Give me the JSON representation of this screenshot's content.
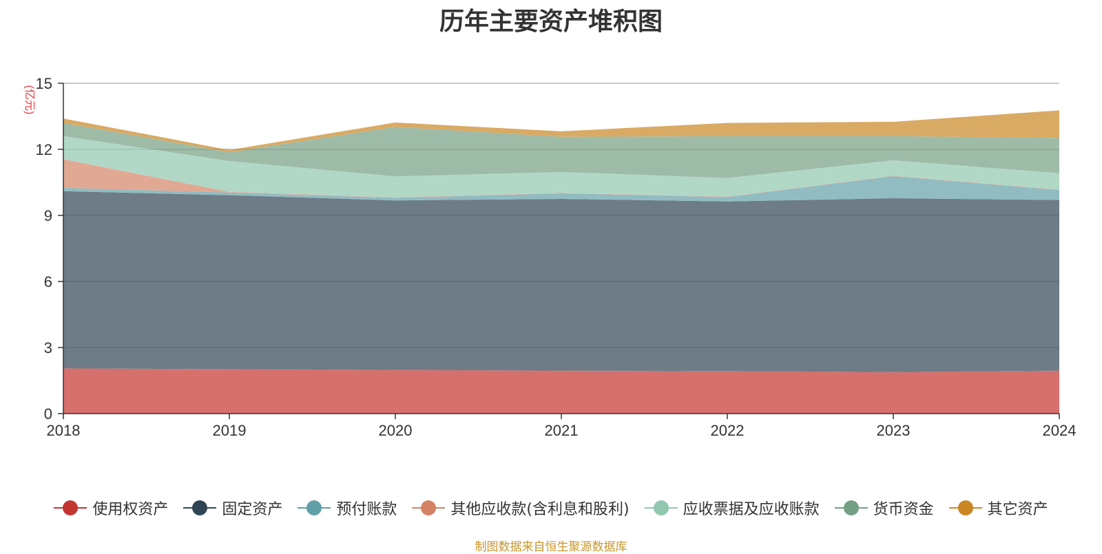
{
  "chart_data": {
    "type": "area",
    "title": "历年主要资产堆积图",
    "ylabel": "亿元",
    "xlabel": "",
    "categories": [
      "2018",
      "2019",
      "2020",
      "2021",
      "2022",
      "2023",
      "2024"
    ],
    "ylim": [
      0,
      15
    ],
    "yticks": [
      0,
      3,
      6,
      9,
      12,
      15
    ],
    "stacked": true,
    "grid": true,
    "legend_position": "bottom",
    "series": [
      {
        "name": "使用权资产",
        "color": "#c23531",
        "fill": "#d6706c",
        "values": [
          2.05,
          2.02,
          1.98,
          1.95,
          1.93,
          1.88,
          1.95
        ]
      },
      {
        "name": "固定资产",
        "color": "#2f4554",
        "fill": "#6e7c87",
        "values": [
          8.05,
          7.9,
          7.7,
          7.8,
          7.7,
          7.9,
          7.75
        ]
      },
      {
        "name": "预付账款",
        "color": "#61a0a8",
        "fill": "#90bcc2",
        "values": [
          0.15,
          0.12,
          0.12,
          0.25,
          0.2,
          1.0,
          0.45
        ]
      },
      {
        "name": "其他应收款(含利息和股利)",
        "color": "#d48265",
        "fill": "#e1a893",
        "values": [
          1.3,
          0.03,
          0.02,
          0.02,
          0.02,
          0.02,
          0.02
        ]
      },
      {
        "name": "应收票据及应收账款",
        "color": "#91c7ae",
        "fill": "#b1d8c6",
        "values": [
          1.05,
          1.4,
          0.95,
          0.95,
          0.85,
          0.7,
          0.75
        ]
      },
      {
        "name": "货币资金",
        "color": "#749f83",
        "fill": "#9ebba8",
        "values": [
          0.6,
          0.4,
          2.25,
          1.6,
          1.9,
          1.1,
          1.6
        ]
      },
      {
        "name": "其它资产",
        "color": "#ca8622",
        "fill": "#d9aa64",
        "values": [
          0.2,
          0.1,
          0.2,
          0.25,
          0.6,
          0.65,
          1.25
        ]
      }
    ]
  },
  "footer": {
    "source": "制图数据来自恒生聚源数据库"
  },
  "colors": {
    "axis": "#333333",
    "grid": "#cccccc",
    "ylabel": "#e83a3a",
    "source": "#c8962c"
  }
}
